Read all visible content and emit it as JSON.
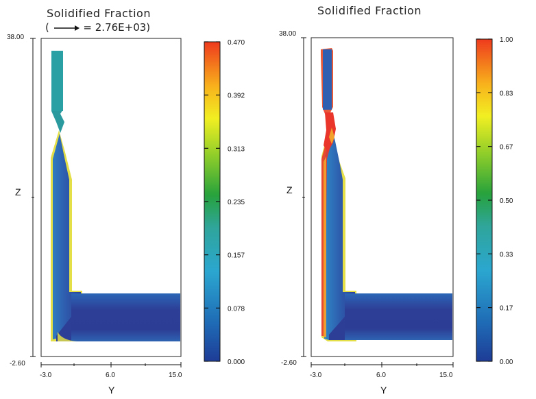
{
  "chart_data": [
    {
      "type": "heatmap",
      "title": "Solidified Fraction",
      "subtitle_prefix": "(",
      "subtitle_suffix": "= 2.76E+03)",
      "xlabel": "Y",
      "ylabel": "Z",
      "x_ticks": [
        "-3.0",
        "6.0",
        "15.0"
      ],
      "xlim": [
        -3.0,
        15.0
      ],
      "ylim": [
        -2.6,
        38.0
      ],
      "y_top_label": "38.00",
      "y_bottom_label": "-2.60",
      "colorbar_ticks": [
        "0.470",
        "0.392",
        "0.313",
        "0.235",
        "0.157",
        "0.078",
        "0.000"
      ],
      "colorbar_range": [
        0.0,
        0.47
      ]
    },
    {
      "type": "heatmap",
      "title": "Solidified Fraction",
      "xlabel": "Y",
      "ylabel": "Z",
      "x_ticks": [
        "-3.0",
        "6.0",
        "15.0"
      ],
      "xlim": [
        -3.0,
        15.0
      ],
      "ylim": [
        -2.6,
        38.0
      ],
      "y_top_label": "38.00",
      "y_bottom_label": "-2.60",
      "colorbar_ticks": [
        "1.00",
        "0.83",
        "0.67",
        "0.50",
        "0.33",
        "0.17",
        "0.00"
      ],
      "colorbar_range": [
        0.0,
        1.0
      ]
    }
  ],
  "colors": {
    "cmap": [
      "#1e3c96",
      "#1f6bb5",
      "#2ba6d0",
      "#2fa59a",
      "#27a23c",
      "#8ccc2a",
      "#f1ef22",
      "#f8b21c",
      "#ee3a1d"
    ],
    "body_dark": "#2c3e96",
    "body_mid": "#3068b8",
    "riser_teal": "#2b9a9e",
    "edge_yellow": "#e8e043",
    "edge_red": "#e83a2a",
    "edge_orange": "#f4a52c"
  }
}
